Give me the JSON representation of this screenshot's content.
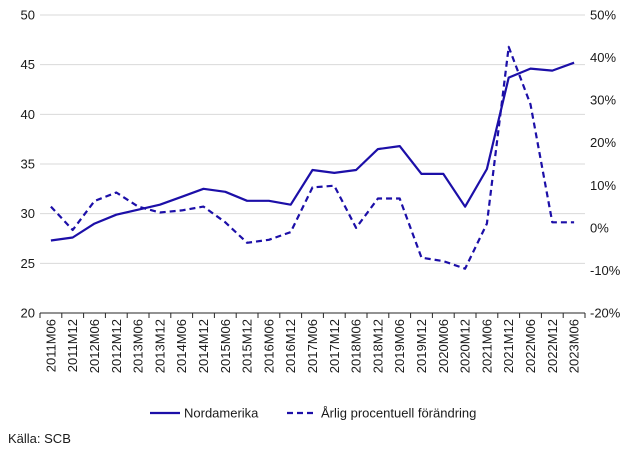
{
  "source_text": "Källa: SCB",
  "colors": {
    "series": "#1c0fa8",
    "grid": "#d9d9d9",
    "axis": "#262626"
  },
  "chart_data": {
    "type": "line",
    "x": [
      "2011M06",
      "2011M12",
      "2012M06",
      "2012M12",
      "2013M06",
      "2013M12",
      "2014M06",
      "2014M12",
      "2015M06",
      "2015M12",
      "2016M06",
      "2016M12",
      "2017M06",
      "2017M12",
      "2018M06",
      "2018M12",
      "2019M06",
      "2019M12",
      "2020M06",
      "2020M12",
      "2021M06",
      "2021M12",
      "2022M06",
      "2022M12",
      "2023M06"
    ],
    "y_left_ticks": [
      "20",
      "25",
      "30",
      "35",
      "40",
      "45",
      "50"
    ],
    "y_right_ticks": [
      "-20%",
      "-10%",
      "0%",
      "10%",
      "20%",
      "30%",
      "40%",
      "50%"
    ],
    "ylim_left": [
      20,
      50
    ],
    "ylim_right": [
      -20,
      50
    ],
    "grid": "horizontal",
    "legend_position": "bottom",
    "series": [
      {
        "name": "Nordamerika",
        "axis": "left",
        "style": "solid",
        "values": [
          27.3,
          27.6,
          29.0,
          29.9,
          30.4,
          30.9,
          31.7,
          32.5,
          32.2,
          31.3,
          31.3,
          30.9,
          34.4,
          34.1,
          34.4,
          36.5,
          36.8,
          34.0,
          34.0,
          30.7,
          34.5,
          43.7,
          44.6,
          44.4,
          45.2
        ]
      },
      {
        "name": "Årlig procentuell förändring",
        "axis": "right",
        "style": "dashed",
        "values": [
          5.0,
          -0.5,
          6.3,
          8.3,
          5.0,
          3.6,
          4.1,
          5.0,
          1.3,
          -3.5,
          -2.8,
          -1.0,
          9.5,
          9.9,
          0.0,
          6.9,
          6.9,
          -7.0,
          -7.8,
          -9.6,
          1.0,
          42.5,
          29.0,
          1.3,
          1.3
        ]
      }
    ]
  }
}
